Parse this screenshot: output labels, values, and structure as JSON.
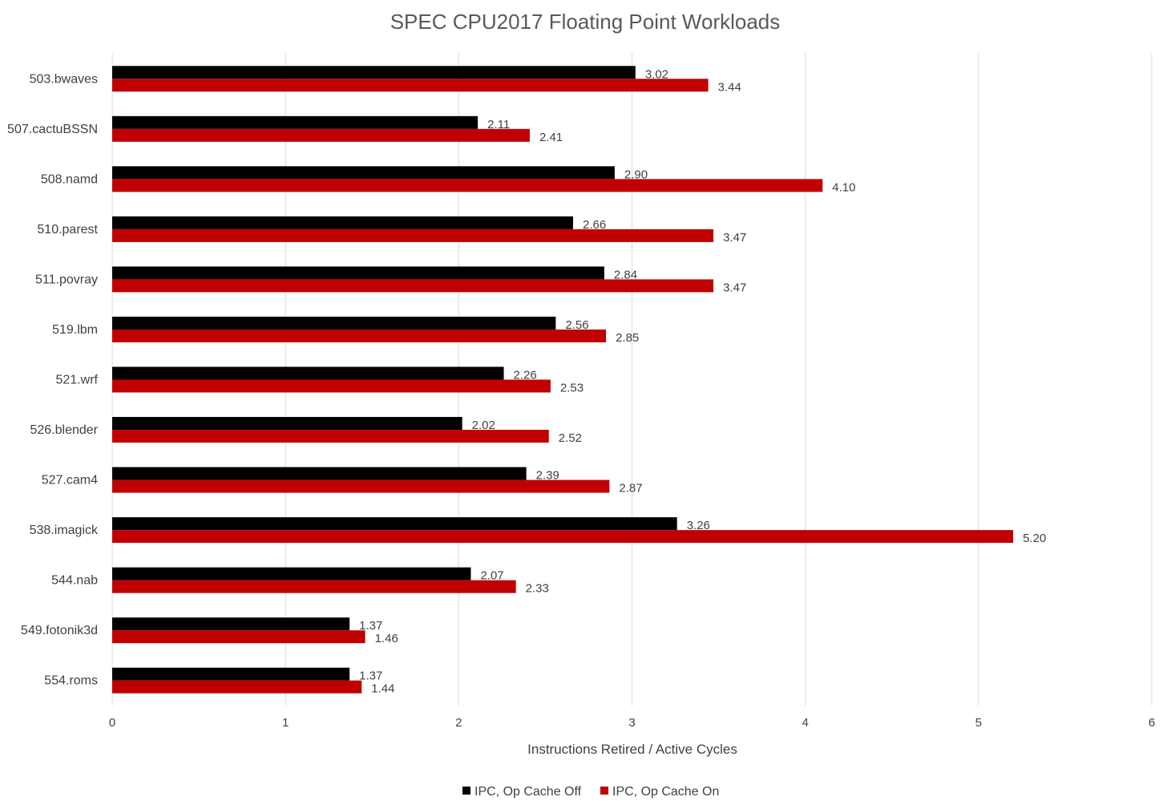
{
  "chart_data": {
    "type": "bar",
    "orientation": "horizontal",
    "title": "SPEC CPU2017 Floating Point Workloads",
    "xlabel": "Instructions Retired / Active Cycles",
    "ylabel": "",
    "xlim": [
      0,
      6
    ],
    "xticks": [
      "0",
      "1",
      "2",
      "3",
      "4",
      "5",
      "6"
    ],
    "grid": true,
    "legend_position": "bottom",
    "categories": [
      "503.bwaves",
      "507.cactuBSSN",
      "508.namd",
      "510.parest",
      "511.povray",
      "519.lbm",
      "521.wrf",
      "526.blender",
      "527.cam4",
      "538.imagick",
      "544.nab",
      "549.fotonik3d",
      "554.roms"
    ],
    "series": [
      {
        "name": "IPC, Op Cache Off",
        "color": "#000000",
        "values": [
          3.02,
          2.11,
          2.9,
          2.66,
          2.84,
          2.56,
          2.26,
          2.02,
          2.39,
          3.26,
          2.07,
          1.37,
          1.37
        ],
        "labels": [
          "3.02",
          "2.11",
          "2.90",
          "2.66",
          "2.84",
          "2.56",
          "2.26",
          "2.02",
          "2.39",
          "3.26",
          "2.07",
          "1.37",
          "1.37"
        ]
      },
      {
        "name": "IPC, Op Cache On",
        "color": "#c00000",
        "values": [
          3.44,
          2.41,
          4.1,
          3.47,
          3.47,
          2.85,
          2.53,
          2.52,
          2.87,
          5.2,
          2.33,
          1.46,
          1.44
        ],
        "labels": [
          "3.44",
          "2.41",
          "4.10",
          "3.47",
          "3.47",
          "2.85",
          "2.53",
          "2.52",
          "2.87",
          "5.20",
          "2.33",
          "1.46",
          "1.44"
        ]
      }
    ]
  }
}
